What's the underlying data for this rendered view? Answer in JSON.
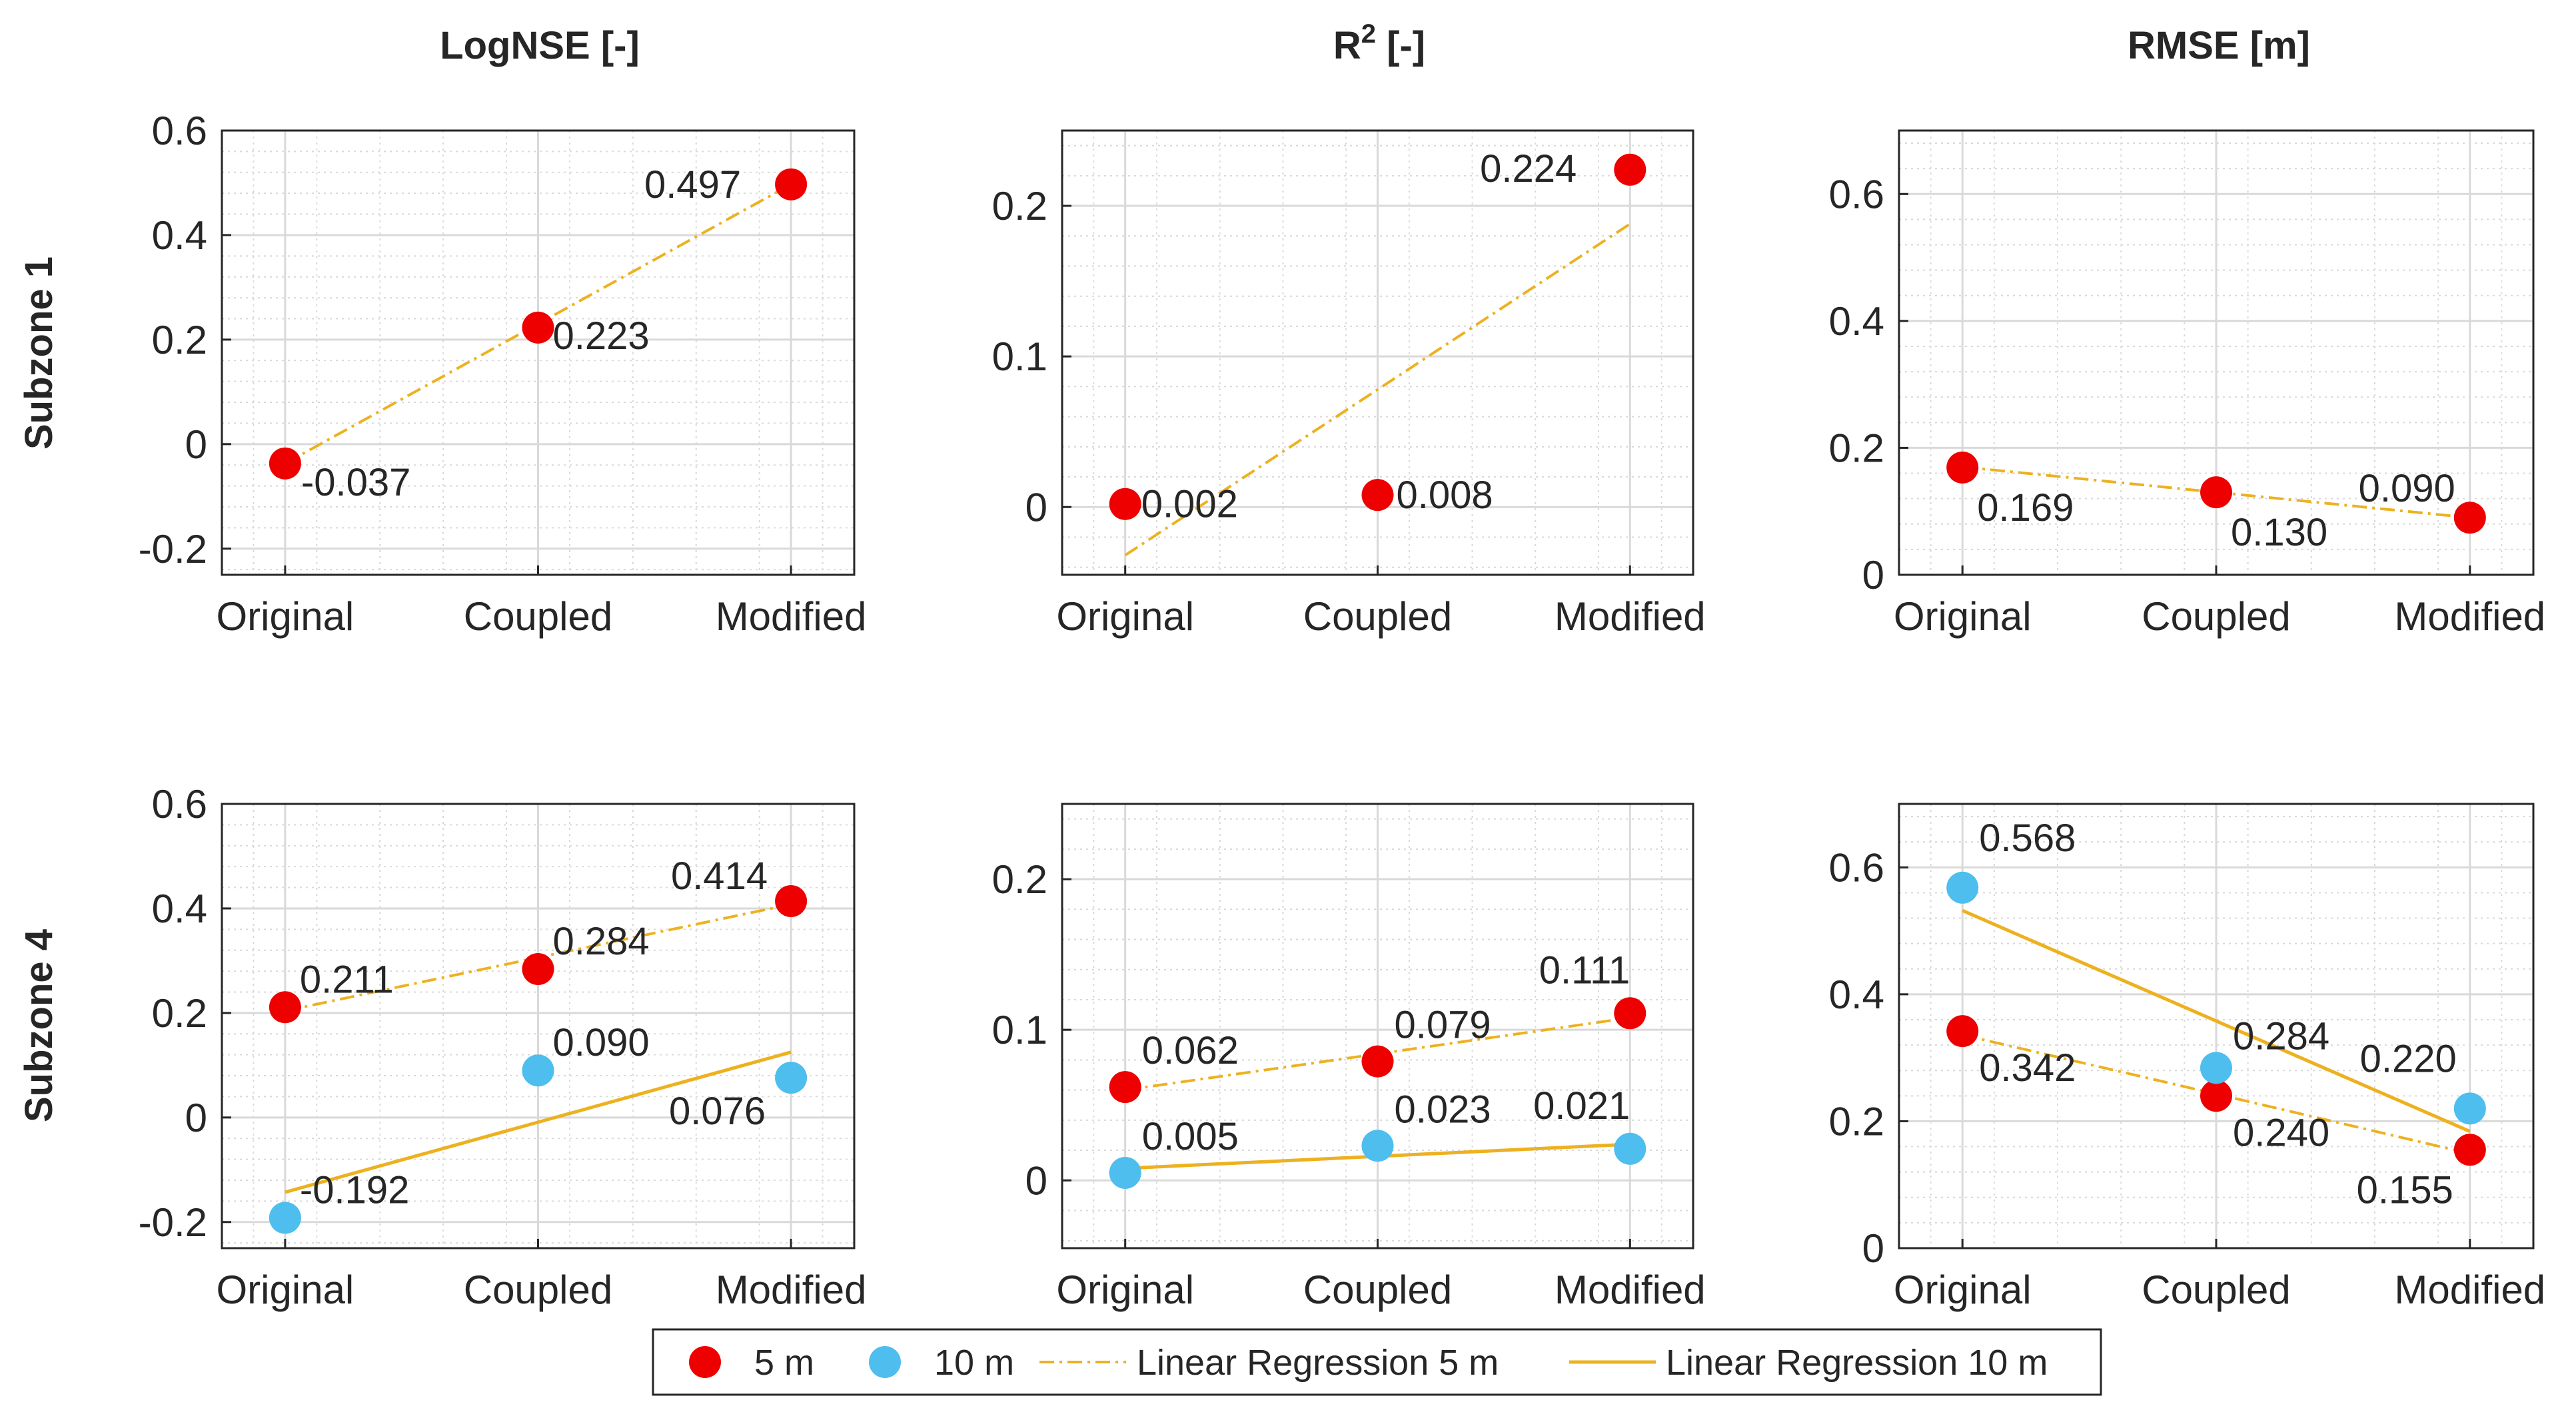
{
  "chart_data": {
    "type": "scatter",
    "categories": [
      "Original",
      "Coupled",
      "Modified"
    ],
    "column_titles": [
      {
        "text": "LogNSE [-]"
      },
      {
        "text": "R",
        "sup": "2",
        "suffix": " [-]"
      },
      {
        "text": "RMSE [m]"
      }
    ],
    "row_labels": [
      "Subzone 1",
      "Subzone 4"
    ],
    "legend": {
      "placement": "bottom-center",
      "entries": [
        {
          "key": "s5",
          "label": "5 m"
        },
        {
          "key": "s10",
          "label": "10 m"
        },
        {
          "key": "r5",
          "label": "Linear Regression 5 m"
        },
        {
          "key": "r10",
          "label": "Linear Regression 10 m"
        }
      ]
    },
    "colors": {
      "s5": "#ee0000",
      "s10": "#4dbeee",
      "r5": "#edb120",
      "r10": "#edb120",
      "grid": "#d9d9d9",
      "axis": "#262626"
    },
    "panels": [
      {
        "metric": "LogNSE",
        "subzone": "Subzone 1",
        "ylim": [
          -0.25,
          0.6
        ],
        "yticks": [
          -0.2,
          0,
          0.2,
          0.4,
          0.6
        ],
        "ytick_labels": [
          "-0.2",
          "0",
          "0.2",
          "0.4",
          "0.6"
        ],
        "series": [
          {
            "key": "s5",
            "name": "5 m",
            "values": [
              -0.037,
              0.223,
              0.497
            ],
            "labels": [
              "-0.037",
              "0.223",
              "0.497"
            ]
          }
        ],
        "regressions": [
          {
            "key": "r5",
            "values": [
              -0.037,
              0.23,
              0.497
            ]
          }
        ]
      },
      {
        "metric": "R2",
        "subzone": "Subzone 1",
        "ylim": [
          -0.045,
          0.25
        ],
        "yticks": [
          0,
          0.1,
          0.2
        ],
        "ytick_labels": [
          "0",
          "0.1",
          "0.2"
        ],
        "series": [
          {
            "key": "s5",
            "name": "5 m",
            "values": [
              0.002,
              0.008,
              0.224
            ],
            "labels": [
              "0.002",
              "0.008",
              "0.224"
            ]
          }
        ],
        "regressions": [
          {
            "key": "r5",
            "values": [
              -0.032,
              0.078,
              0.188
            ]
          }
        ]
      },
      {
        "metric": "RMSE",
        "subzone": "Subzone 1",
        "ylim": [
          0,
          0.7
        ],
        "yticks": [
          0,
          0.2,
          0.4,
          0.6
        ],
        "ytick_labels": [
          "0",
          "0.2",
          "0.4",
          "0.6"
        ],
        "series": [
          {
            "key": "s5",
            "name": "5 m",
            "values": [
              0.169,
              0.13,
              0.09
            ],
            "labels": [
              "0.169",
              "0.130",
              "0.090"
            ]
          }
        ],
        "regressions": [
          {
            "key": "r5",
            "values": [
              0.17,
              0.13,
              0.09
            ]
          }
        ]
      },
      {
        "metric": "LogNSE",
        "subzone": "Subzone 4",
        "ylim": [
          -0.25,
          0.6
        ],
        "yticks": [
          -0.2,
          0,
          0.2,
          0.4,
          0.6
        ],
        "ytick_labels": [
          "-0.2",
          "0",
          "0.2",
          "0.4",
          "0.6"
        ],
        "series": [
          {
            "key": "s5",
            "name": "5 m",
            "values": [
              0.211,
              0.284,
              0.414
            ],
            "labels": [
              "0.211",
              "0.284",
              "0.414"
            ]
          },
          {
            "key": "s10",
            "name": "10 m",
            "values": [
              -0.192,
              0.09,
              0.076
            ],
            "labels": [
              "-0.192",
              "0.090",
              "0.076"
            ]
          }
        ],
        "regressions": [
          {
            "key": "r5",
            "values": [
              0.204,
              0.306,
              0.408
            ]
          },
          {
            "key": "r10",
            "values": [
              -0.143,
              -0.009,
              0.125
            ]
          }
        ]
      },
      {
        "metric": "R2",
        "subzone": "Subzone 4",
        "ylim": [
          -0.045,
          0.25
        ],
        "yticks": [
          0,
          0.1,
          0.2
        ],
        "ytick_labels": [
          "0",
          "0.1",
          "0.2"
        ],
        "series": [
          {
            "key": "s5",
            "name": "5 m",
            "values": [
              0.062,
              0.079,
              0.111
            ],
            "labels": [
              "0.062",
              "0.079",
              "0.111"
            ]
          },
          {
            "key": "s10",
            "name": "10 m",
            "values": [
              0.005,
              0.023,
              0.021
            ],
            "labels": [
              "0.005",
              "0.023",
              "0.021"
            ]
          }
        ],
        "regressions": [
          {
            "key": "r5",
            "values": [
              0.06,
              0.084,
              0.108
            ]
          },
          {
            "key": "r10",
            "values": [
              0.008,
              0.016,
              0.024
            ]
          }
        ]
      },
      {
        "metric": "RMSE",
        "subzone": "Subzone 4",
        "ylim": [
          0,
          0.7
        ],
        "yticks": [
          0,
          0.2,
          0.4,
          0.6
        ],
        "ytick_labels": [
          "0",
          "0.2",
          "0.4",
          "0.6"
        ],
        "series": [
          {
            "key": "s5",
            "name": "5 m",
            "values": [
              0.342,
              0.24,
              0.155
            ],
            "labels": [
              "0.342",
              "0.240",
              "0.155"
            ]
          },
          {
            "key": "s10",
            "name": "10 m",
            "values": [
              0.568,
              0.284,
              0.22
            ],
            "labels": [
              "0.568",
              "0.284",
              "0.220"
            ]
          }
        ],
        "regressions": [
          {
            "key": "r5",
            "values": [
              0.336,
              0.243,
              0.149
            ]
          },
          {
            "key": "r10",
            "values": [
              0.532,
              0.358,
              0.184
            ]
          }
        ]
      }
    ]
  }
}
